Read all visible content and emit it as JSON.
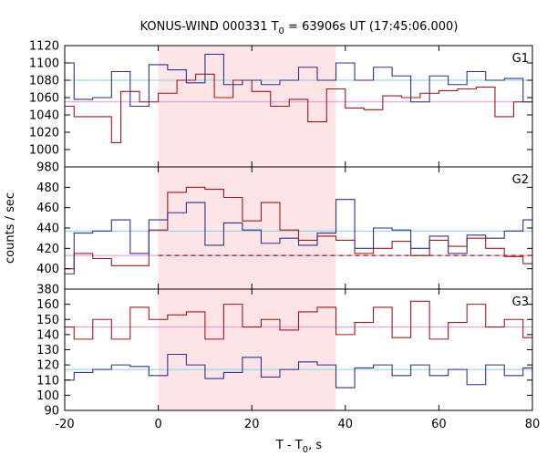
{
  "chart_data": {
    "type": "line",
    "title_prefix": "KONUS-WIND 000331 T",
    "title_sub": "0",
    "title_suffix": " = 63906s UT (17:45:06.000)",
    "xlabel_prefix": "T - T",
    "xlabel_sub": "0",
    "xlabel_suffix": ", s",
    "ylabel": "counts / sec",
    "xlim": [
      -20,
      80
    ],
    "x_ticks": [
      "-20",
      "0",
      "20",
      "40",
      "60",
      "80"
    ],
    "shaded_interval": [
      0,
      38
    ],
    "colors": {
      "shade": "#fde4e6",
      "red": "#a3171a",
      "blue": "#2e3192",
      "cyan": "#7fd3e6",
      "pink": "#e88fe0"
    },
    "panels": [
      {
        "name": "G1",
        "ylim": [
          980,
          1120
        ],
        "y_ticks": [
          980,
          1000,
          1020,
          1040,
          1060,
          1080,
          1100,
          1120
        ],
        "show_bottom_tick": true,
        "series": [
          {
            "color": "red",
            "x": [
              -20,
              -18,
              -16,
              -14,
              -12,
              -10,
              -8,
              -6,
              -4,
              -2,
              0,
              2,
              4,
              6,
              8,
              10,
              12,
              14,
              16,
              18,
              20,
              22,
              24,
              26,
              28,
              30,
              32,
              34,
              36,
              38,
              40,
              42,
              44,
              46,
              48,
              50,
              52,
              54,
              56,
              58,
              60,
              62,
              64,
              66,
              68,
              70,
              72,
              74,
              76,
              78,
              80
            ],
            "y": [
              1050,
              1038,
              1038,
              1038,
              1038,
              1008,
              1067,
              1067,
              1055,
              1055,
              1065,
              1065,
              1080,
              1080,
              1087,
              1087,
              1060,
              1060,
              1080,
              1080,
              1067,
              1067,
              1050,
              1050,
              1058,
              1058,
              1032,
              1032,
              1070,
              1070,
              1048,
              1048,
              1046,
              1046,
              1062,
              1062,
              1060,
              1060,
              1065,
              1065,
              1068,
              1068,
              1070,
              1070,
              1072,
              1072,
              1038,
              1038,
              1055,
              1055,
              1085
            ]
          },
          {
            "color": "blue",
            "x": [
              -20,
              -18,
              -16,
              -14,
              -12,
              -10,
              -8,
              -6,
              -4,
              -2,
              0,
              2,
              4,
              6,
              8,
              10,
              12,
              14,
              16,
              18,
              20,
              22,
              24,
              26,
              28,
              30,
              32,
              34,
              36,
              38,
              40,
              42,
              44,
              46,
              48,
              50,
              52,
              54,
              56,
              58,
              60,
              62,
              64,
              66,
              68,
              70,
              72,
              74,
              76,
              78,
              80
            ],
            "y": [
              1100,
              1058,
              1058,
              1060,
              1060,
              1090,
              1090,
              1050,
              1050,
              1098,
              1098,
              1092,
              1092,
              1077,
              1077,
              1110,
              1110,
              1075,
              1075,
              1080,
              1080,
              1075,
              1075,
              1080,
              1080,
              1095,
              1095,
              1080,
              1080,
              1100,
              1100,
              1080,
              1080,
              1095,
              1095,
              1085,
              1085,
              1055,
              1055,
              1085,
              1085,
              1075,
              1075,
              1090,
              1090,
              1080,
              1080,
              1082,
              1082,
              1055,
              1075
            ]
          }
        ],
        "hlines": [
          {
            "color": "cyan",
            "y": 1080
          },
          {
            "color": "pink",
            "y": 1055
          }
        ]
      },
      {
        "name": "G2",
        "ylim": [
          380,
          500
        ],
        "y_ticks": [
          380,
          400,
          420,
          440,
          460,
          480
        ],
        "show_bottom_tick": true,
        "series": [
          {
            "color": "red",
            "x": [
              -20,
              -18,
              -16,
              -14,
              -12,
              -10,
              -8,
              -6,
              -4,
              -2,
              0,
              2,
              4,
              6,
              8,
              10,
              12,
              14,
              16,
              18,
              20,
              22,
              24,
              26,
              28,
              30,
              32,
              34,
              36,
              38,
              40,
              42,
              44,
              46,
              48,
              50,
              52,
              54,
              56,
              58,
              60,
              62,
              64,
              66,
              68,
              70,
              72,
              74,
              76,
              78,
              80
            ],
            "y": [
              400,
              415,
              415,
              410,
              410,
              403,
              403,
              403,
              403,
              438,
              438,
              475,
              475,
              480,
              480,
              478,
              478,
              470,
              470,
              447,
              447,
              465,
              465,
              438,
              438,
              428,
              428,
              432,
              432,
              428,
              428,
              415,
              415,
              420,
              420,
              427,
              427,
              413,
              413,
              428,
              428,
              422,
              422,
              430,
              430,
              420,
              420,
              412,
              412,
              405,
              408
            ]
          },
          {
            "color": "blue",
            "x": [
              -20,
              -18,
              -16,
              -14,
              -12,
              -10,
              -8,
              -6,
              -4,
              -2,
              0,
              2,
              4,
              6,
              8,
              10,
              12,
              14,
              16,
              18,
              20,
              22,
              24,
              26,
              28,
              30,
              32,
              34,
              36,
              38,
              40,
              42,
              44,
              46,
              48,
              50,
              52,
              54,
              56,
              58,
              60,
              62,
              64,
              66,
              68,
              70,
              72,
              74,
              76,
              78,
              80
            ],
            "y": [
              395,
              435,
              435,
              437,
              437,
              448,
              448,
              415,
              415,
              448,
              448,
              455,
              455,
              465,
              465,
              423,
              423,
              445,
              445,
              438,
              438,
              425,
              425,
              430,
              430,
              423,
              423,
              435,
              435,
              468,
              468,
              420,
              420,
              440,
              440,
              438,
              438,
              420,
              420,
              432,
              432,
              415,
              415,
              433,
              433,
              430,
              430,
              437,
              437,
              448,
              448
            ]
          }
        ],
        "hlines": [
          {
            "color": "cyan",
            "y": 437
          },
          {
            "color": "pink",
            "y": 413
          }
        ],
        "dashed": {
          "color": "red",
          "x1": 0,
          "x2": 80,
          "y": 413
        }
      },
      {
        "name": "G3",
        "ylim": [
          90,
          170
        ],
        "y_ticks": [
          90,
          100,
          110,
          120,
          130,
          140,
          150,
          160
        ],
        "show_bottom_tick": true,
        "series": [
          {
            "color": "red",
            "x": [
              -20,
              -18,
              -16,
              -14,
              -12,
              -10,
              -8,
              -6,
              -4,
              -2,
              0,
              2,
              4,
              6,
              8,
              10,
              12,
              14,
              16,
              18,
              20,
              22,
              24,
              26,
              28,
              30,
              32,
              34,
              36,
              38,
              40,
              42,
              44,
              46,
              48,
              50,
              52,
              54,
              56,
              58,
              60,
              62,
              64,
              66,
              68,
              70,
              72,
              74,
              76,
              78,
              80
            ],
            "y": [
              145,
              137,
              137,
              150,
              150,
              137,
              137,
              158,
              158,
              150,
              150,
              153,
              153,
              155,
              155,
              137,
              137,
              160,
              160,
              145,
              145,
              150,
              150,
              143,
              143,
              155,
              155,
              158,
              158,
              140,
              140,
              148,
              148,
              158,
              158,
              138,
              138,
              162,
              162,
              137,
              137,
              148,
              148,
              160,
              160,
              145,
              145,
              150,
              150,
              138,
              158
            ]
          },
          {
            "color": "blue",
            "x": [
              -20,
              -18,
              -16,
              -14,
              -12,
              -10,
              -8,
              -6,
              -4,
              -2,
              0,
              2,
              4,
              6,
              8,
              10,
              12,
              14,
              16,
              18,
              20,
              22,
              24,
              26,
              28,
              30,
              32,
              34,
              36,
              38,
              40,
              42,
              44,
              46,
              48,
              50,
              52,
              54,
              56,
              58,
              60,
              62,
              64,
              66,
              68,
              70,
              72,
              74,
              76,
              78,
              80
            ],
            "y": [
              110,
              115,
              115,
              117,
              117,
              120,
              120,
              119,
              119,
              113,
              113,
              127,
              127,
              120,
              120,
              111,
              111,
              115,
              115,
              125,
              125,
              112,
              112,
              117,
              117,
              122,
              122,
              120,
              120,
              105,
              105,
              118,
              118,
              120,
              120,
              113,
              113,
              120,
              120,
              113,
              113,
              117,
              117,
              107,
              107,
              120,
              120,
              113,
              113,
              118,
              100
            ]
          }
        ],
        "hlines": [
          {
            "color": "cyan",
            "y": 117
          },
          {
            "color": "pink",
            "y": 145
          }
        ]
      }
    ]
  }
}
